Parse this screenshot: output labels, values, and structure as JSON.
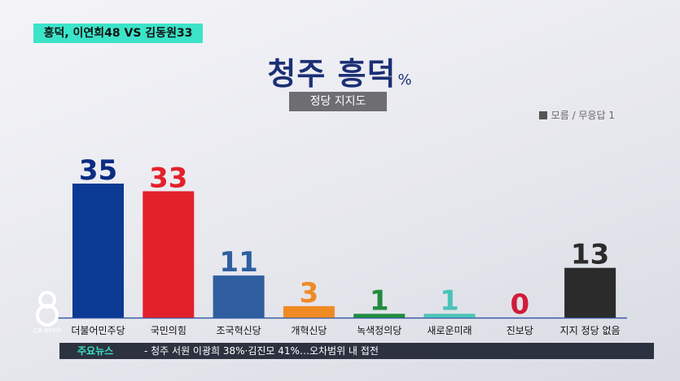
{
  "tag": "흥덕, 이연희48 VS 김동원33",
  "title": "청주 흥덕",
  "title_unit": "%",
  "subtitle": "정당 지지도",
  "legend_note": "모름 / 무응답 1",
  "ticker": {
    "label": "주요뉴스",
    "text": "- 청주 서원 이광희 38%·김진모 41%…오차범위 내 접전"
  },
  "logo_text": "CJB NEWS",
  "chart_data": {
    "type": "bar",
    "categories": [
      "더불어민주당",
      "국민의힘",
      "조국혁신당",
      "개혁신당",
      "녹색정의당",
      "새로운미래",
      "진보당",
      "지지 정당 없음"
    ],
    "values": [
      35,
      33,
      11,
      3,
      1,
      1,
      0,
      13
    ],
    "colors": [
      "#0a3a93",
      "#e3212b",
      "#2f5fa0",
      "#f08a24",
      "#1f8c3e",
      "#4cc3b8",
      "#d01c38",
      "#2b2b2b"
    ],
    "label_colors": [
      "#0a2c82",
      "#e3212b",
      "#2f5fa0",
      "#f08a24",
      "#1f8c3e",
      "#4cc3b8",
      "#d01c38",
      "#2b2b2b"
    ],
    "ylim": [
      0,
      35
    ]
  }
}
